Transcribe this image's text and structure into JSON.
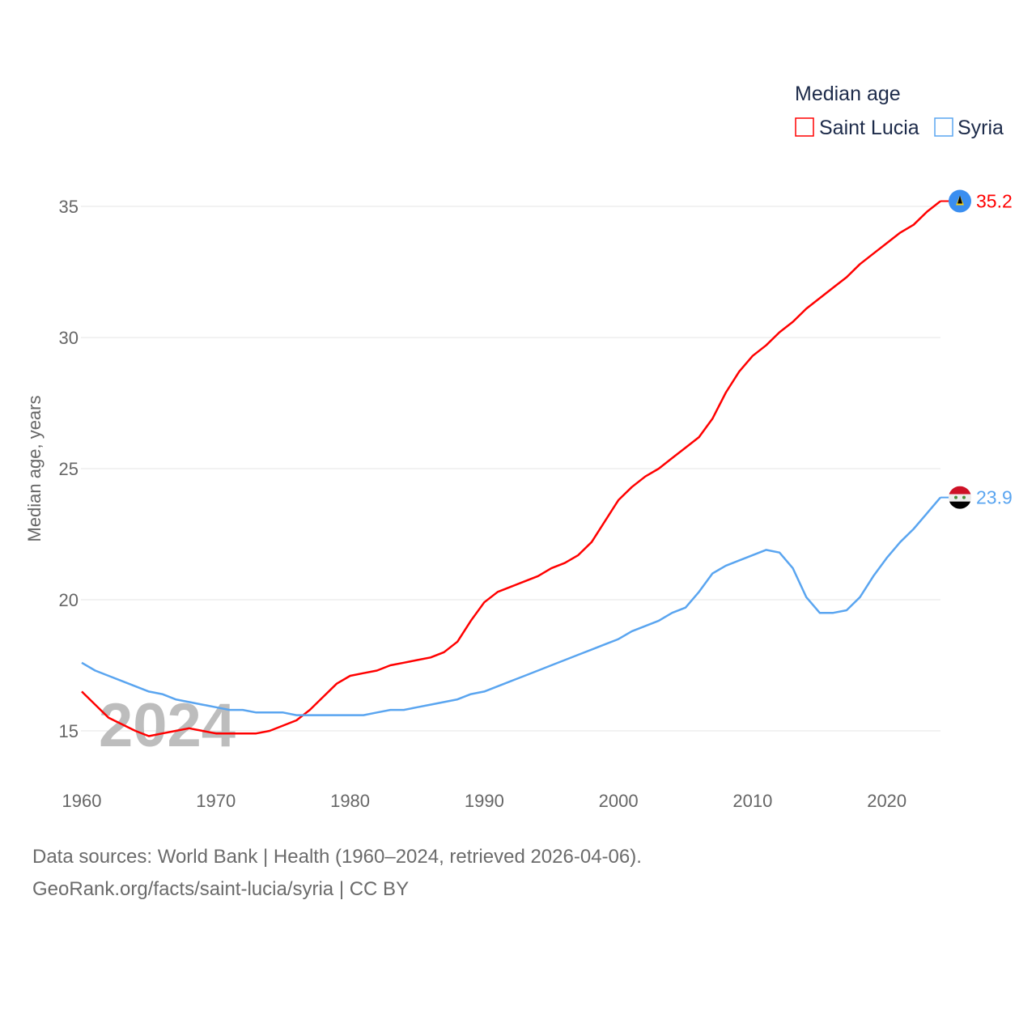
{
  "chart_data": {
    "type": "line",
    "ylabel": "Median age, years",
    "xlabel": "",
    "legend_title": "Median age",
    "legend_position": "top-right",
    "year_watermark": "2024",
    "ylim": [
      13,
      37
    ],
    "xlim": [
      1960,
      2024
    ],
    "yticks": [
      15,
      20,
      25,
      30,
      35
    ],
    "xticks": [
      1960,
      1970,
      1980,
      1990,
      2000,
      2010,
      2020
    ],
    "grid": true,
    "x": [
      1960,
      1961,
      1962,
      1963,
      1964,
      1965,
      1966,
      1967,
      1968,
      1969,
      1970,
      1971,
      1972,
      1973,
      1974,
      1975,
      1976,
      1977,
      1978,
      1979,
      1980,
      1981,
      1982,
      1983,
      1984,
      1985,
      1986,
      1987,
      1988,
      1989,
      1990,
      1991,
      1992,
      1993,
      1994,
      1995,
      1996,
      1997,
      1998,
      1999,
      2000,
      2001,
      2002,
      2003,
      2004,
      2005,
      2006,
      2007,
      2008,
      2009,
      2010,
      2011,
      2012,
      2013,
      2014,
      2015,
      2016,
      2017,
      2018,
      2019,
      2020,
      2021,
      2022,
      2023,
      2024
    ],
    "series": [
      {
        "name": "Saint Lucia",
        "color": "#ff0000",
        "end_label": "35.2",
        "values": [
          16.5,
          16.0,
          15.5,
          15.25,
          15.0,
          14.8,
          14.9,
          15.0,
          15.1,
          15.0,
          14.9,
          14.9,
          14.9,
          14.9,
          15.0,
          15.2,
          15.4,
          15.8,
          16.3,
          16.8,
          17.1,
          17.2,
          17.3,
          17.5,
          17.6,
          17.7,
          17.8,
          18.0,
          18.4,
          19.2,
          19.9,
          20.3,
          20.5,
          20.7,
          20.9,
          21.2,
          21.4,
          21.7,
          22.2,
          23.0,
          23.8,
          24.3,
          24.7,
          25.0,
          25.4,
          25.8,
          26.2,
          26.9,
          27.9,
          28.7,
          29.3,
          29.7,
          30.2,
          30.6,
          31.1,
          31.5,
          31.9,
          32.3,
          32.8,
          33.2,
          33.6,
          34.0,
          34.3,
          34.8,
          35.2
        ]
      },
      {
        "name": "Syria",
        "color": "#5aa5f0",
        "end_label": "23.9",
        "values": [
          17.6,
          17.3,
          17.1,
          16.9,
          16.7,
          16.5,
          16.4,
          16.2,
          16.1,
          16.0,
          15.9,
          15.8,
          15.8,
          15.7,
          15.7,
          15.7,
          15.6,
          15.6,
          15.6,
          15.6,
          15.6,
          15.6,
          15.7,
          15.8,
          15.8,
          15.9,
          16.0,
          16.1,
          16.2,
          16.4,
          16.5,
          16.7,
          16.9,
          17.1,
          17.3,
          17.5,
          17.7,
          17.9,
          18.1,
          18.3,
          18.5,
          18.8,
          19.0,
          19.2,
          19.5,
          19.7,
          20.3,
          21.0,
          21.3,
          21.5,
          21.7,
          21.9,
          21.8,
          21.2,
          20.1,
          19.5,
          19.5,
          19.6,
          20.1,
          20.9,
          21.6,
          22.2,
          22.7,
          23.3,
          23.9
        ]
      }
    ]
  },
  "footer": {
    "line1": "Data sources: World Bank | Health (1960–2024, retrieved 2026-04-06).",
    "line2": "GeoRank.org/facts/saint-lucia/syria | CC BY"
  }
}
